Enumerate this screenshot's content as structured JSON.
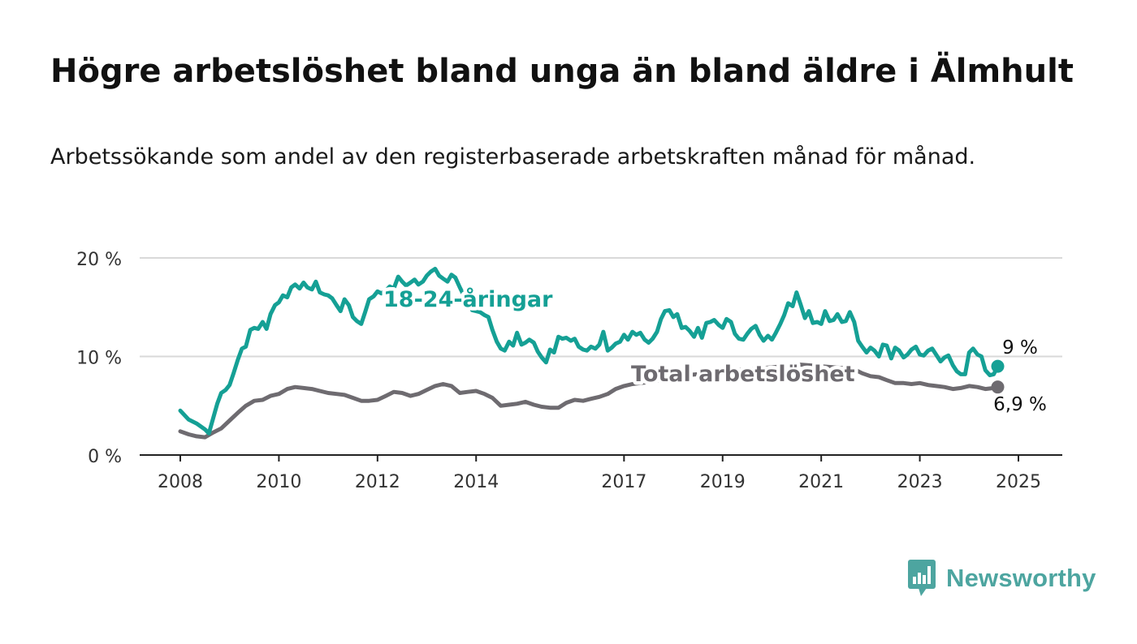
{
  "title": "Högre arbetslöshet bland unga än bland äldre i Älmhult",
  "subtitle": "Arbetssökande som andel av den registerbaserade arbetskraften månad för månad.",
  "brand": {
    "name": "Newsworthy",
    "color": "#4da5a0",
    "icon": "bar-chart-speech-bubble-icon"
  },
  "chart_data": {
    "type": "line",
    "y_ticks": [
      {
        "value": 0,
        "label": "0 %"
      },
      {
        "value": 10,
        "label": "10 %"
      },
      {
        "value": 20,
        "label": "20 %"
      }
    ],
    "x_ticks": [
      {
        "value": 2008,
        "label": "2008"
      },
      {
        "value": 2010,
        "label": "2010"
      },
      {
        "value": 2012,
        "label": "2012"
      },
      {
        "value": 2014,
        "label": "2014"
      },
      {
        "value": 2017,
        "label": "2017"
      },
      {
        "value": 2019,
        "label": "2019"
      },
      {
        "value": 2021,
        "label": "2021"
      },
      {
        "value": 2023,
        "label": "2023"
      },
      {
        "value": 2025,
        "label": "2025"
      }
    ],
    "xlim": [
      2007.2,
      2025.95
    ],
    "ylim": [
      0,
      20
    ],
    "grid": true,
    "series": [
      {
        "name": "18-24-åringar",
        "color": "#15a095",
        "end_label": "9 %",
        "points": [
          [
            2008.0,
            4.5
          ],
          [
            2008.17,
            3.6
          ],
          [
            2008.33,
            3.2
          ],
          [
            2008.5,
            2.6
          ],
          [
            2008.58,
            2.2
          ],
          [
            2008.67,
            3.8
          ],
          [
            2008.75,
            5.2
          ],
          [
            2008.83,
            6.3
          ],
          [
            2008.92,
            6.6
          ],
          [
            2009.0,
            7.1
          ],
          [
            2009.08,
            8.3
          ],
          [
            2009.17,
            9.7
          ],
          [
            2009.25,
            10.8
          ],
          [
            2009.33,
            11.0
          ],
          [
            2009.42,
            12.7
          ],
          [
            2009.5,
            12.9
          ],
          [
            2009.58,
            12.8
          ],
          [
            2009.67,
            13.5
          ],
          [
            2009.75,
            12.8
          ],
          [
            2009.83,
            14.3
          ],
          [
            2009.92,
            15.2
          ],
          [
            2010.0,
            15.5
          ],
          [
            2010.08,
            16.2
          ],
          [
            2010.17,
            16.0
          ],
          [
            2010.25,
            17.0
          ],
          [
            2010.33,
            17.3
          ],
          [
            2010.42,
            16.9
          ],
          [
            2010.5,
            17.5
          ],
          [
            2010.58,
            17.0
          ],
          [
            2010.67,
            16.8
          ],
          [
            2010.75,
            17.6
          ],
          [
            2010.83,
            16.5
          ],
          [
            2010.92,
            16.3
          ],
          [
            2011.0,
            16.2
          ],
          [
            2011.08,
            15.9
          ],
          [
            2011.17,
            15.2
          ],
          [
            2011.25,
            14.6
          ],
          [
            2011.33,
            15.8
          ],
          [
            2011.42,
            15.2
          ],
          [
            2011.5,
            14.0
          ],
          [
            2011.58,
            13.6
          ],
          [
            2011.67,
            13.3
          ],
          [
            2011.75,
            14.5
          ],
          [
            2011.83,
            15.8
          ],
          [
            2011.92,
            16.1
          ],
          [
            2012.0,
            16.6
          ],
          [
            2012.08,
            16.4
          ],
          [
            2012.17,
            16.7
          ],
          [
            2012.25,
            17.1
          ],
          [
            2012.33,
            16.9
          ],
          [
            2012.42,
            18.1
          ],
          [
            2012.5,
            17.6
          ],
          [
            2012.58,
            17.2
          ],
          [
            2012.67,
            17.5
          ],
          [
            2012.75,
            17.8
          ],
          [
            2012.83,
            17.3
          ],
          [
            2012.92,
            17.6
          ],
          [
            2013.0,
            18.2
          ],
          [
            2013.08,
            18.6
          ],
          [
            2013.17,
            18.9
          ],
          [
            2013.25,
            18.2
          ],
          [
            2013.33,
            17.9
          ],
          [
            2013.42,
            17.6
          ],
          [
            2013.5,
            18.3
          ],
          [
            2013.58,
            18.0
          ],
          [
            2013.67,
            17.0
          ],
          [
            2013.75,
            16.2
          ],
          [
            2013.83,
            15.4
          ],
          [
            2013.92,
            14.7
          ],
          [
            2014.0,
            14.6
          ],
          [
            2014.08,
            14.5
          ],
          [
            2014.17,
            14.2
          ],
          [
            2014.25,
            14.0
          ],
          [
            2014.33,
            12.7
          ],
          [
            2014.42,
            11.5
          ],
          [
            2014.5,
            10.8
          ],
          [
            2014.58,
            10.6
          ],
          [
            2014.67,
            11.5
          ],
          [
            2014.75,
            11.1
          ],
          [
            2014.83,
            12.4
          ],
          [
            2014.92,
            11.2
          ],
          [
            2015.0,
            11.4
          ],
          [
            2015.08,
            11.7
          ],
          [
            2015.17,
            11.4
          ],
          [
            2015.25,
            10.5
          ],
          [
            2015.33,
            9.9
          ],
          [
            2015.42,
            9.4
          ],
          [
            2015.5,
            10.7
          ],
          [
            2015.58,
            10.4
          ],
          [
            2015.67,
            12.0
          ],
          [
            2015.75,
            11.8
          ],
          [
            2015.83,
            11.9
          ],
          [
            2015.92,
            11.6
          ],
          [
            2016.0,
            11.8
          ],
          [
            2016.08,
            11.0
          ],
          [
            2016.17,
            10.7
          ],
          [
            2016.25,
            10.6
          ],
          [
            2016.33,
            11.0
          ],
          [
            2016.42,
            10.8
          ],
          [
            2016.5,
            11.2
          ],
          [
            2016.58,
            12.5
          ],
          [
            2016.67,
            10.6
          ],
          [
            2016.75,
            10.9
          ],
          [
            2016.83,
            11.3
          ],
          [
            2016.92,
            11.5
          ],
          [
            2017.0,
            12.2
          ],
          [
            2017.08,
            11.7
          ],
          [
            2017.17,
            12.5
          ],
          [
            2017.25,
            12.2
          ],
          [
            2017.33,
            12.4
          ],
          [
            2017.42,
            11.7
          ],
          [
            2017.5,
            11.4
          ],
          [
            2017.58,
            11.8
          ],
          [
            2017.67,
            12.5
          ],
          [
            2017.75,
            13.8
          ],
          [
            2017.83,
            14.6
          ],
          [
            2017.92,
            14.7
          ],
          [
            2018.0,
            14.0
          ],
          [
            2018.08,
            14.3
          ],
          [
            2018.17,
            12.9
          ],
          [
            2018.25,
            13.0
          ],
          [
            2018.33,
            12.6
          ],
          [
            2018.42,
            12.0
          ],
          [
            2018.5,
            12.9
          ],
          [
            2018.58,
            11.9
          ],
          [
            2018.67,
            13.4
          ],
          [
            2018.75,
            13.5
          ],
          [
            2018.83,
            13.7
          ],
          [
            2018.92,
            13.2
          ],
          [
            2019.0,
            12.9
          ],
          [
            2019.08,
            13.8
          ],
          [
            2019.17,
            13.5
          ],
          [
            2019.25,
            12.3
          ],
          [
            2019.33,
            11.8
          ],
          [
            2019.42,
            11.7
          ],
          [
            2019.5,
            12.3
          ],
          [
            2019.58,
            12.8
          ],
          [
            2019.67,
            13.1
          ],
          [
            2019.75,
            12.2
          ],
          [
            2019.83,
            11.6
          ],
          [
            2019.92,
            12.1
          ],
          [
            2020.0,
            11.7
          ],
          [
            2020.08,
            12.4
          ],
          [
            2020.17,
            13.3
          ],
          [
            2020.25,
            14.2
          ],
          [
            2020.33,
            15.4
          ],
          [
            2020.42,
            15.1
          ],
          [
            2020.5,
            16.5
          ],
          [
            2020.58,
            15.3
          ],
          [
            2020.67,
            13.9
          ],
          [
            2020.75,
            14.6
          ],
          [
            2020.83,
            13.4
          ],
          [
            2020.92,
            13.5
          ],
          [
            2021.0,
            13.3
          ],
          [
            2021.08,
            14.6
          ],
          [
            2021.17,
            13.6
          ],
          [
            2021.25,
            13.7
          ],
          [
            2021.33,
            14.3
          ],
          [
            2021.42,
            13.5
          ],
          [
            2021.5,
            13.6
          ],
          [
            2021.58,
            14.5
          ],
          [
            2021.67,
            13.5
          ],
          [
            2021.75,
            11.6
          ],
          [
            2021.83,
            11.0
          ],
          [
            2021.92,
            10.4
          ],
          [
            2022.0,
            10.9
          ],
          [
            2022.08,
            10.6
          ],
          [
            2022.17,
            10.0
          ],
          [
            2022.25,
            11.2
          ],
          [
            2022.33,
            11.1
          ],
          [
            2022.42,
            9.8
          ],
          [
            2022.5,
            10.9
          ],
          [
            2022.58,
            10.6
          ],
          [
            2022.67,
            9.9
          ],
          [
            2022.75,
            10.2
          ],
          [
            2022.83,
            10.7
          ],
          [
            2022.92,
            11.0
          ],
          [
            2023.0,
            10.2
          ],
          [
            2023.08,
            10.1
          ],
          [
            2023.17,
            10.6
          ],
          [
            2023.25,
            10.8
          ],
          [
            2023.33,
            10.2
          ],
          [
            2023.42,
            9.5
          ],
          [
            2023.5,
            9.9
          ],
          [
            2023.58,
            10.1
          ],
          [
            2023.67,
            9.1
          ],
          [
            2023.75,
            8.5
          ],
          [
            2023.83,
            8.2
          ],
          [
            2023.92,
            8.2
          ],
          [
            2024.0,
            10.4
          ],
          [
            2024.08,
            10.8
          ],
          [
            2024.17,
            10.2
          ],
          [
            2024.25,
            10.0
          ],
          [
            2024.33,
            8.6
          ],
          [
            2024.42,
            8.1
          ],
          [
            2024.5,
            8.2
          ],
          [
            2024.58,
            9.0
          ]
        ]
      },
      {
        "name": "Total arbetslöshet",
        "color": "#6e6b70",
        "end_label": "6,9 %",
        "points": [
          [
            2008.0,
            2.4
          ],
          [
            2008.17,
            2.1
          ],
          [
            2008.33,
            1.9
          ],
          [
            2008.5,
            1.8
          ],
          [
            2008.67,
            2.3
          ],
          [
            2008.83,
            2.7
          ],
          [
            2009.0,
            3.5
          ],
          [
            2009.17,
            4.3
          ],
          [
            2009.33,
            5.0
          ],
          [
            2009.5,
            5.5
          ],
          [
            2009.67,
            5.6
          ],
          [
            2009.83,
            6.0
          ],
          [
            2010.0,
            6.2
          ],
          [
            2010.17,
            6.7
          ],
          [
            2010.33,
            6.9
          ],
          [
            2010.5,
            6.8
          ],
          [
            2010.67,
            6.7
          ],
          [
            2010.83,
            6.5
          ],
          [
            2011.0,
            6.3
          ],
          [
            2011.17,
            6.2
          ],
          [
            2011.33,
            6.1
          ],
          [
            2011.5,
            5.8
          ],
          [
            2011.67,
            5.5
          ],
          [
            2011.83,
            5.5
          ],
          [
            2012.0,
            5.6
          ],
          [
            2012.17,
            6.0
          ],
          [
            2012.33,
            6.4
          ],
          [
            2012.5,
            6.3
          ],
          [
            2012.67,
            6.0
          ],
          [
            2012.83,
            6.2
          ],
          [
            2013.0,
            6.6
          ],
          [
            2013.17,
            7.0
          ],
          [
            2013.33,
            7.2
          ],
          [
            2013.5,
            7.0
          ],
          [
            2013.67,
            6.3
          ],
          [
            2013.83,
            6.4
          ],
          [
            2014.0,
            6.5
          ],
          [
            2014.17,
            6.2
          ],
          [
            2014.33,
            5.8
          ],
          [
            2014.5,
            5.0
          ],
          [
            2014.67,
            5.1
          ],
          [
            2014.83,
            5.2
          ],
          [
            2015.0,
            5.4
          ],
          [
            2015.17,
            5.1
          ],
          [
            2015.33,
            4.9
          ],
          [
            2015.5,
            4.8
          ],
          [
            2015.67,
            4.8
          ],
          [
            2015.83,
            5.3
          ],
          [
            2016.0,
            5.6
          ],
          [
            2016.17,
            5.5
          ],
          [
            2016.33,
            5.7
          ],
          [
            2016.5,
            5.9
          ],
          [
            2016.67,
            6.2
          ],
          [
            2016.83,
            6.7
          ],
          [
            2017.0,
            7.0
          ],
          [
            2017.17,
            7.2
          ],
          [
            2017.33,
            7.3
          ],
          [
            2017.5,
            7.4
          ],
          [
            2017.75,
            7.6
          ],
          [
            2018.0,
            7.9
          ],
          [
            2018.25,
            8.1
          ],
          [
            2018.5,
            8.2
          ],
          [
            2018.75,
            8.4
          ],
          [
            2019.0,
            8.5
          ],
          [
            2019.25,
            8.6
          ],
          [
            2019.5,
            8.7
          ],
          [
            2019.75,
            8.8
          ],
          [
            2020.0,
            8.9
          ],
          [
            2020.25,
            9.0
          ],
          [
            2020.5,
            9.2
          ],
          [
            2020.75,
            9.1
          ],
          [
            2021.0,
            9.0
          ],
          [
            2021.25,
            8.9
          ],
          [
            2021.5,
            8.8
          ],
          [
            2021.67,
            8.7
          ],
          [
            2021.83,
            8.3
          ],
          [
            2022.0,
            8.0
          ],
          [
            2022.17,
            7.9
          ],
          [
            2022.33,
            7.6
          ],
          [
            2022.5,
            7.3
          ],
          [
            2022.67,
            7.3
          ],
          [
            2022.83,
            7.2
          ],
          [
            2023.0,
            7.3
          ],
          [
            2023.17,
            7.1
          ],
          [
            2023.33,
            7.0
          ],
          [
            2023.5,
            6.9
          ],
          [
            2023.67,
            6.7
          ],
          [
            2023.83,
            6.8
          ],
          [
            2024.0,
            7.0
          ],
          [
            2024.17,
            6.9
          ],
          [
            2024.33,
            6.7
          ],
          [
            2024.5,
            6.8
          ],
          [
            2024.58,
            6.9
          ]
        ]
      }
    ]
  }
}
